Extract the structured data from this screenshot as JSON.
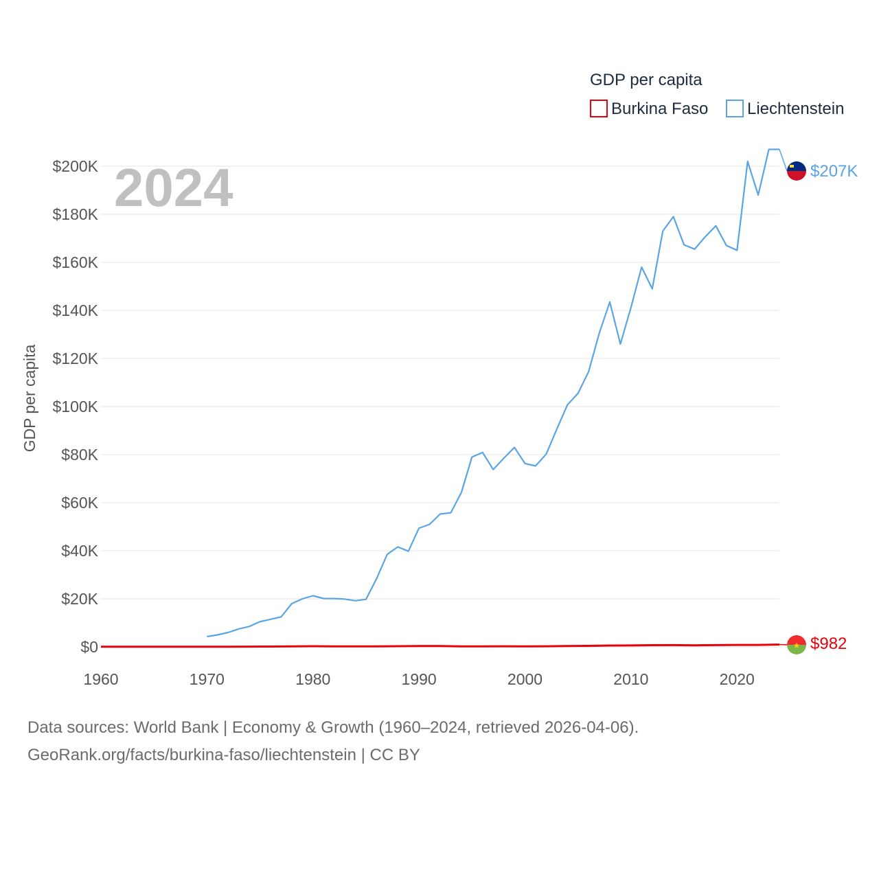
{
  "chart_data": {
    "type": "line",
    "title": "2024",
    "ylabel": "GDP per capita",
    "xlabel": "",
    "xlim": [
      1960,
      2024
    ],
    "ylim": [
      0,
      210000
    ],
    "x_ticks": [
      1960,
      1970,
      1980,
      1990,
      2000,
      2010,
      2020
    ],
    "x_tick_labels": [
      "1960",
      "1970",
      "1980",
      "1990",
      "2000",
      "2010",
      "2020"
    ],
    "y_ticks": [
      0,
      20000,
      40000,
      60000,
      80000,
      100000,
      120000,
      140000,
      160000,
      180000,
      200000
    ],
    "y_tick_labels": [
      "$0",
      "$20K",
      "$40K",
      "$60K",
      "$80K",
      "$100K",
      "$120K",
      "$140K",
      "$160K",
      "$180K",
      "$200K"
    ],
    "legend": {
      "title": "GDP per capita",
      "position": "top-right"
    },
    "series": [
      {
        "name": "Burkina Faso",
        "color": "#e8000b",
        "end_label": "$982",
        "x": [
          1960,
          1962,
          1964,
          1966,
          1968,
          1970,
          1972,
          1974,
          1976,
          1978,
          1980,
          1982,
          1984,
          1986,
          1988,
          1990,
          1992,
          1994,
          1996,
          1998,
          2000,
          2002,
          2004,
          2006,
          2008,
          2010,
          2012,
          2014,
          2016,
          2018,
          2020,
          2022,
          2024
        ],
        "values": [
          60,
          65,
          70,
          75,
          80,
          75,
          90,
          120,
          150,
          220,
          280,
          240,
          190,
          240,
          290,
          330,
          340,
          190,
          230,
          250,
          230,
          260,
          360,
          420,
          560,
          610,
          720,
          750,
          650,
          750,
          830,
          830,
          982
        ]
      },
      {
        "name": "Liechtenstein",
        "color": "#5aa4e4",
        "end_label": "$207K",
        "x": [
          1970,
          1971,
          1972,
          1973,
          1974,
          1975,
          1976,
          1977,
          1978,
          1979,
          1980,
          1981,
          1982,
          1983,
          1984,
          1985,
          1986,
          1987,
          1988,
          1989,
          1990,
          1991,
          1992,
          1993,
          1994,
          1995,
          1996,
          1997,
          1998,
          1999,
          2000,
          2001,
          2002,
          2003,
          2004,
          2005,
          2006,
          2007,
          2008,
          2009,
          2010,
          2011,
          2012,
          2013,
          2014,
          2015,
          2016,
          2017,
          2018,
          2019,
          2020,
          2021,
          2022,
          2023,
          2024
        ],
        "values": [
          4300,
          5000,
          6000,
          7500,
          8500,
          10500,
          11500,
          12500,
          18000,
          20000,
          21300,
          20100,
          20100,
          19900,
          19200,
          19800,
          28400,
          38500,
          41600,
          39800,
          49400,
          51000,
          55300,
          55800,
          64300,
          79000,
          80900,
          73800,
          78500,
          83000,
          76300,
          75300,
          80200,
          90600,
          100700,
          105500,
          114500,
          130500,
          143500,
          126000,
          141300,
          158000,
          149000,
          173000,
          179000,
          167300,
          165500,
          170600,
          175200,
          167000,
          165000,
          202000,
          188000,
          207000,
          207000
        ]
      }
    ]
  },
  "footer": {
    "line1": "Data sources: World Bank | Economy & Growth (1960–2024, retrieved 2026-04-06).",
    "line2": "GeoRank.org/facts/burkina-faso/liechtenstein | CC BY"
  }
}
